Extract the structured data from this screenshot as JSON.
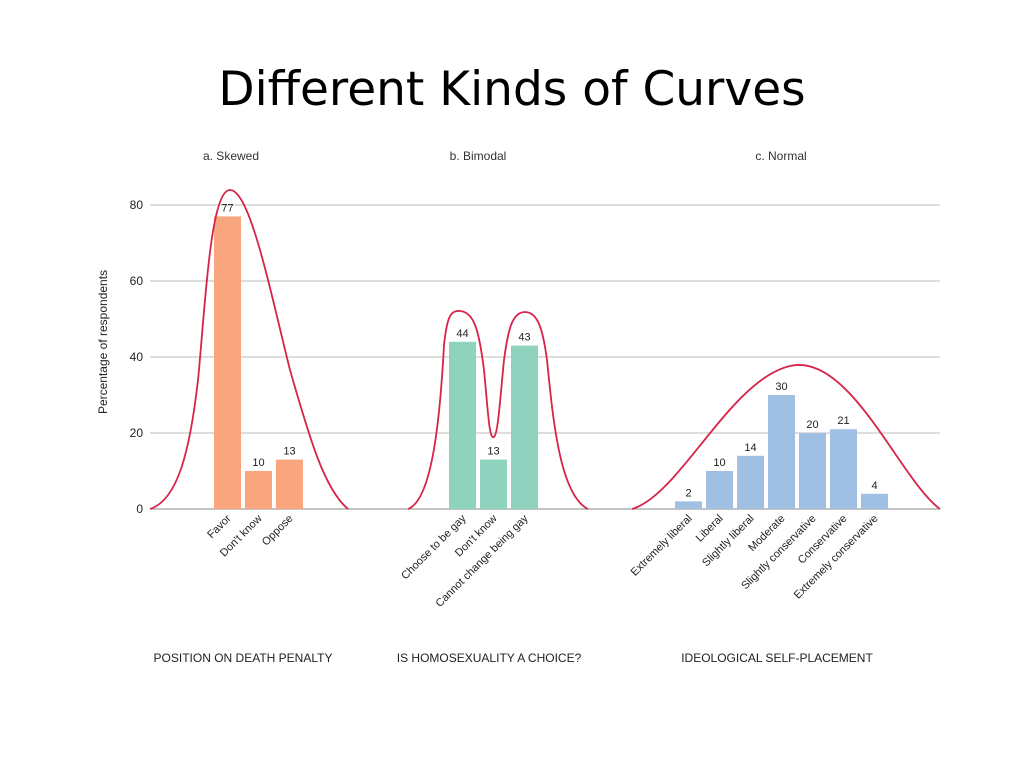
{
  "slide": {
    "title": "Different Kinds of Curves"
  },
  "colors": {
    "skewed": "#f9a57e",
    "bimodal": "#8fd2bd",
    "normal": "#9fbfe3",
    "curve": "#d6244a"
  },
  "chart_data": {
    "type": "bar",
    "ylabel": "Percentage of respondents",
    "ylim": [
      0,
      85
    ],
    "yticks": [
      0,
      20,
      40,
      60,
      80
    ],
    "grid": true,
    "panels": [
      {
        "title": "a. Skewed",
        "xlabel": "POSITION ON DEATH PENALTY",
        "categories": [
          "Favor",
          "Don't know",
          "Oppose"
        ],
        "values": [
          77,
          10,
          13
        ],
        "color_key": "skewed"
      },
      {
        "title": "b. Bimodal",
        "xlabel": "IS HOMOSEXUALITY A CHOICE?",
        "categories": [
          "Choose to be gay",
          "Don't know",
          "Cannot change being gay"
        ],
        "values": [
          44,
          13,
          43
        ],
        "color_key": "bimodal"
      },
      {
        "title": "c. Normal",
        "xlabel": "IDEOLOGICAL SELF-PLACEMENT",
        "categories": [
          "Extremely liberal",
          "Liberal",
          "Slightly liberal",
          "Moderate",
          "Slightly conservative",
          "Conservative",
          "Extremely conservative"
        ],
        "values": [
          2,
          10,
          14,
          30,
          20,
          21,
          4
        ],
        "color_key": "normal"
      }
    ]
  }
}
